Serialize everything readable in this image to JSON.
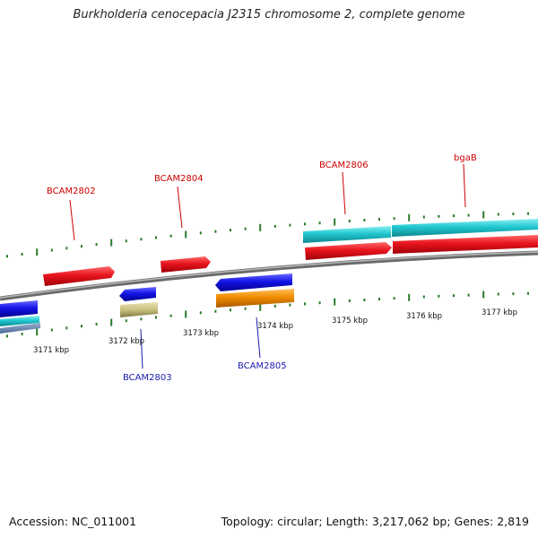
{
  "title": "Burkholderia cenocepacia J2315 chromosome 2, complete genome",
  "footer": {
    "accession": "Accession: NC_011001",
    "summary": "Topology: circular; Length: 3,217,062 bp; Genes: 2,819"
  },
  "colors": {
    "backbone": "#8a8a8a",
    "tick": "#2a7a2a",
    "label_top": "#cc0000",
    "label_bottom": "#1a1aaa",
    "gene_red": "#e8141e",
    "gene_blue": "#1414e6",
    "gene_cyan": "#22c8d0",
    "gene_orange": "#f08c00",
    "gene_khaki": "#c8c080"
  },
  "scale_labels": [
    "3171 kbp",
    "3172 kbp",
    "3173 kbp",
    "3174 kbp",
    "3175 kbp",
    "3176 kbp",
    "3177 kbp"
  ],
  "gene_labels_top": [
    "BCAM2802",
    "BCAM2804",
    "BCAM2806",
    "bgaB"
  ],
  "gene_labels_bottom": [
    "BCAM2803",
    "BCAM2805"
  ]
}
